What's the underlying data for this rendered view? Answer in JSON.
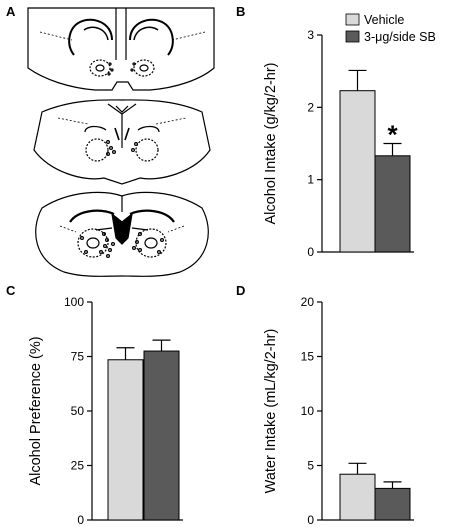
{
  "panel_labels": {
    "a": "A",
    "b": "B",
    "c": "C",
    "d": "D"
  },
  "colors": {
    "vehicle": "#d9d9d9",
    "sb": "#5a5a5a",
    "axis": "#000000"
  },
  "legend": {
    "vehicle": "Vehicle",
    "sb": "3-μg/side SB"
  },
  "chart_data": [
    {
      "panel": "B",
      "type": "bar",
      "ylabel": "Alcohol Intake (g/kg/2-hr)",
      "ylim": [
        0,
        3
      ],
      "yticks": [
        "0",
        "1",
        "2",
        "3"
      ],
      "series": [
        {
          "name": "Vehicle",
          "values": [
            2.23
          ],
          "error": [
            0.28
          ]
        },
        {
          "name": "3-μg/side SB",
          "values": [
            1.33
          ],
          "error": [
            0.17
          ]
        }
      ],
      "annotation": "*"
    },
    {
      "panel": "C",
      "type": "bar",
      "ylabel": "Alcohol Preference (%)",
      "ylim": [
        0,
        100
      ],
      "yticks": [
        "0",
        "25",
        "50",
        "75",
        "100"
      ],
      "series": [
        {
          "name": "Vehicle",
          "values": [
            73.5
          ],
          "error": [
            5.5
          ]
        },
        {
          "name": "3-μg/side SB",
          "values": [
            77.5
          ],
          "error": [
            5.0
          ]
        }
      ]
    },
    {
      "panel": "D",
      "type": "bar",
      "ylabel": "Water Intake (mL/kg/2-hr)",
      "ylim": [
        0,
        20
      ],
      "yticks": [
        "0",
        "5",
        "10",
        "15",
        "20"
      ],
      "series": [
        {
          "name": "Vehicle",
          "values": [
            4.2
          ],
          "error": [
            1.0
          ]
        },
        {
          "name": "3-μg/side SB",
          "values": [
            2.9
          ],
          "error": [
            0.6
          ]
        }
      ]
    }
  ]
}
